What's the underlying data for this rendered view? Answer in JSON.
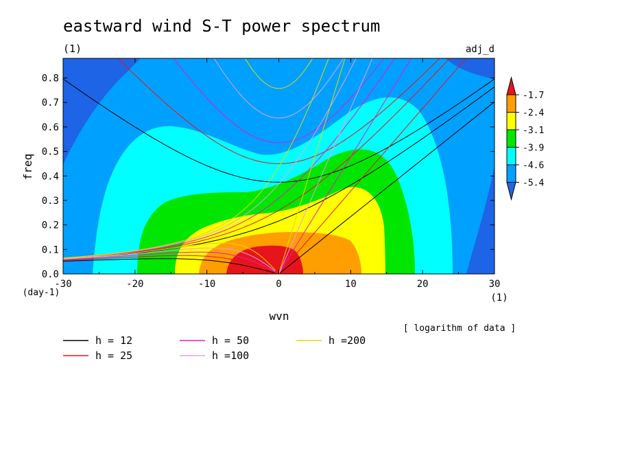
{
  "chart_data": {
    "type": "heatmap",
    "title": "eastward wind S-T power spectrum",
    "subtitle_left": "(1)",
    "subtitle_right": "adj_d",
    "xlabel": "wvn",
    "ylabel": "freq",
    "x_unit": "(1)",
    "y_unit": "(day-1)",
    "xlim": [
      -30,
      30
    ],
    "ylim": [
      0,
      0.88
    ],
    "x_ticks": [
      -30,
      -20,
      -10,
      0,
      10,
      20,
      30
    ],
    "x_tick_labels": [
      "-30",
      "-20",
      "-10",
      "0",
      "10",
      "20",
      "30"
    ],
    "y_ticks": [
      0,
      0.1,
      0.2,
      0.3,
      0.4,
      0.5,
      0.6,
      0.7,
      0.8
    ],
    "y_tick_labels": [
      "0.0",
      "0.1",
      "0.2",
      "0.3",
      "0.4",
      "0.5",
      "0.6",
      "0.7",
      "0.8"
    ],
    "note": "[ logarithm of data ]",
    "colorbar": {
      "levels": [
        "-1.7",
        "-2.4",
        "-3.1",
        "-3.9",
        "-4.6",
        "-5.4"
      ],
      "colors": [
        "#e8141c",
        "#ff9e00",
        "#ffff00",
        "#00e600",
        "#00ffff",
        "#00a0ff",
        "#1e64e6"
      ]
    },
    "fill_levels": [
      {
        "level": "below -5.4",
        "color": "#1e64e6"
      },
      {
        "level": "-5.4",
        "color": "#00a0ff"
      },
      {
        "level": "-4.6",
        "color": "#00ffff"
      },
      {
        "level": "-3.9",
        "color": "#00e600"
      },
      {
        "level": "-3.1",
        "color": "#ffff00"
      },
      {
        "level": "-2.4",
        "color": "#ff9e00"
      },
      {
        "level": "-1.7",
        "color": "#e8141c"
      }
    ],
    "dispersion_curves": [
      {
        "name": "h = 12",
        "color": "#000000"
      },
      {
        "name": "h = 25",
        "color": "#e8141c"
      },
      {
        "name": "h = 50",
        "color": "#e619c8"
      },
      {
        "name": "h =100",
        "color": "#e6a0e6"
      },
      {
        "name": "h =200",
        "color": "#e6d700"
      }
    ]
  }
}
